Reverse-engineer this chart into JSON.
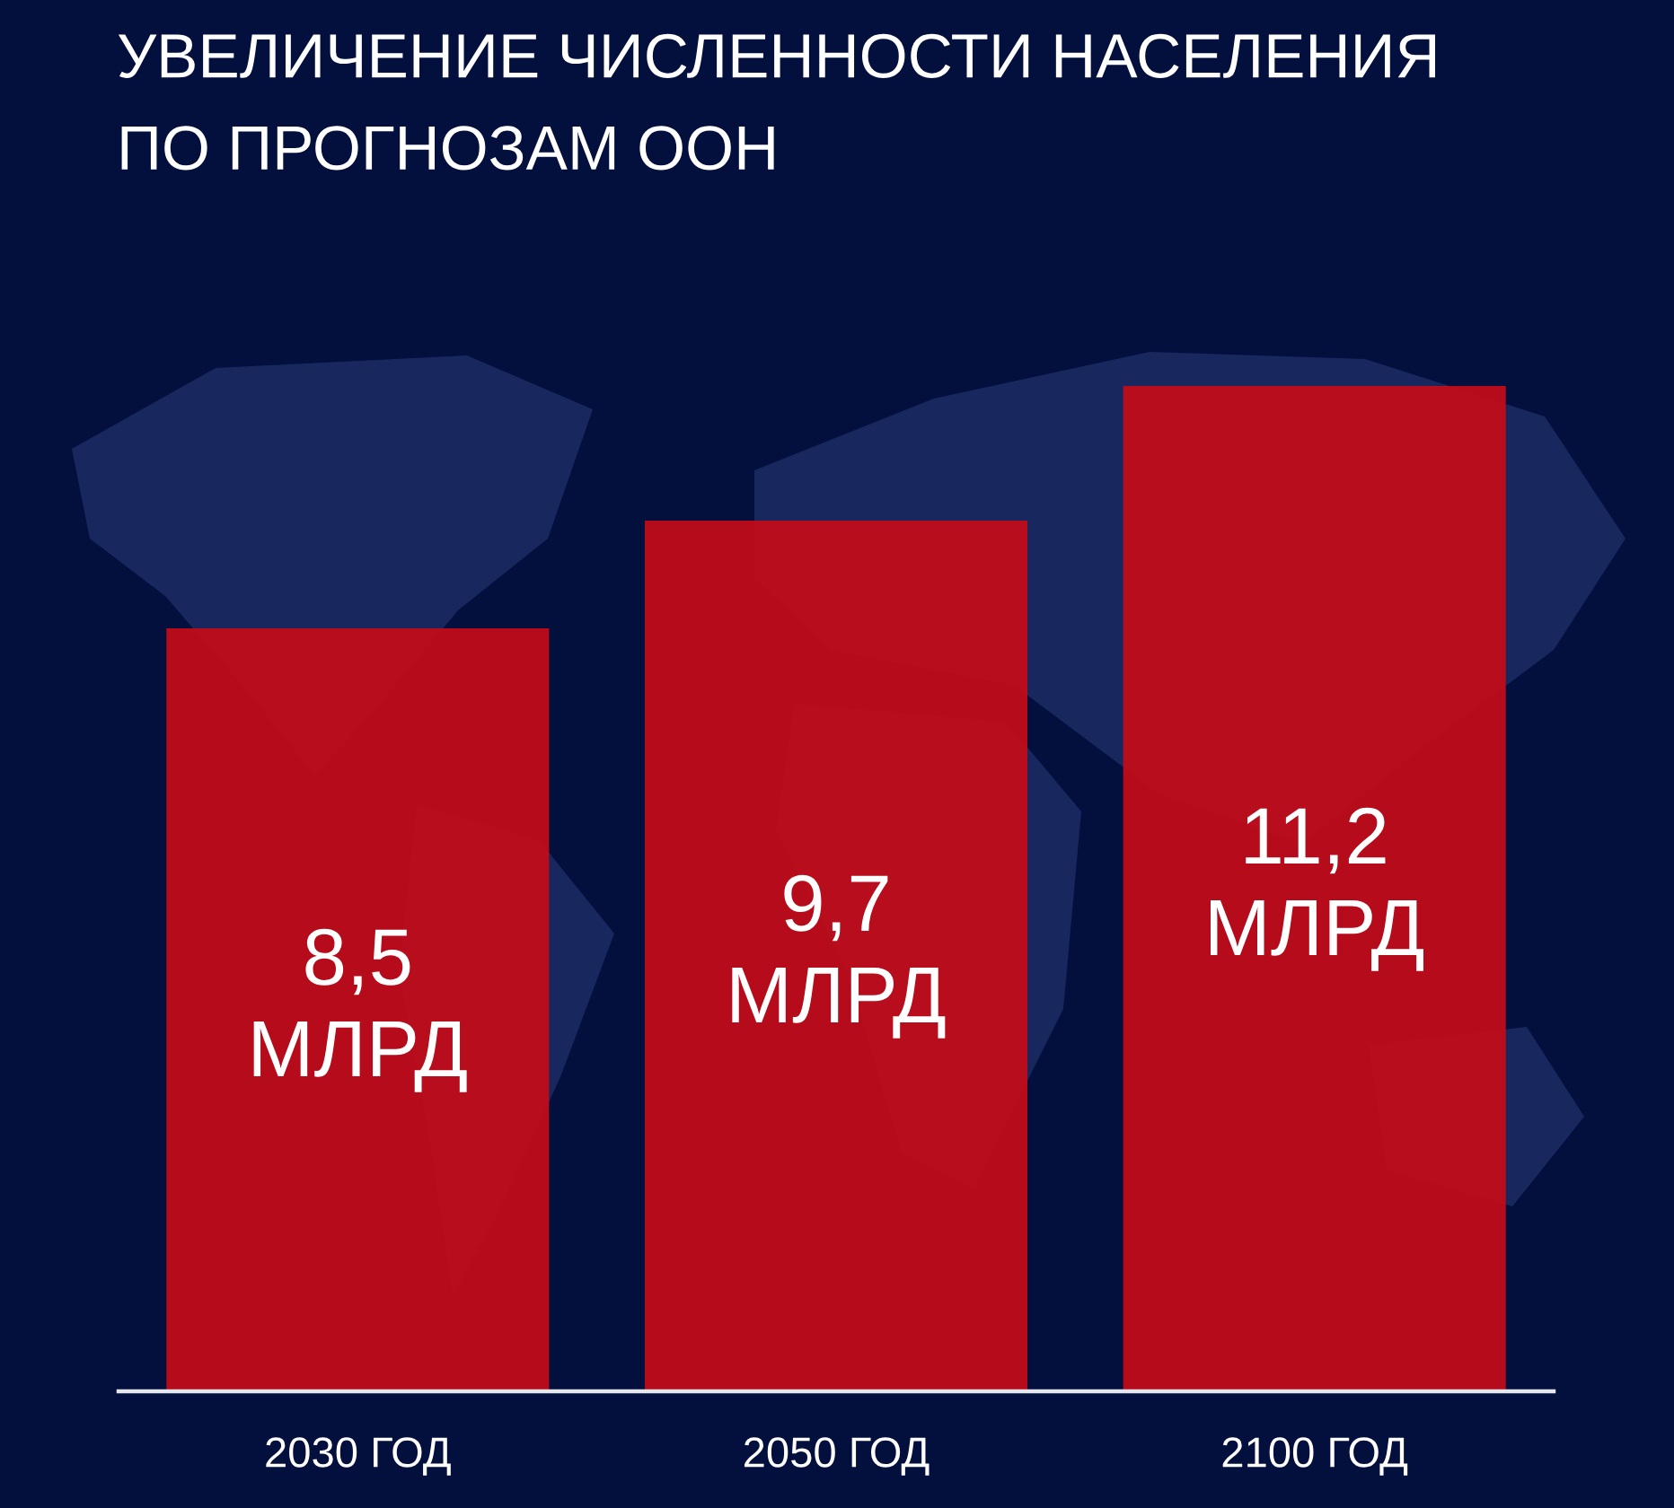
{
  "chart_data": {
    "type": "bar",
    "title": "УВЕЛИЧЕНИЕ ЧИСЛЕННОСТИ НАСЕЛЕНИЯ\nПО ПРОГНОЗАМ ООН",
    "categories": [
      "2030 ГОД",
      "2050 ГОД",
      "2100 ГОД"
    ],
    "values": [
      8.5,
      9.7,
      11.2
    ],
    "value_labels": [
      "8,5\nМЛРД",
      "9,7\nМЛРД",
      "11,2\nМЛРД"
    ],
    "color": "#c00c18",
    "tick_labels": "x"
  }
}
